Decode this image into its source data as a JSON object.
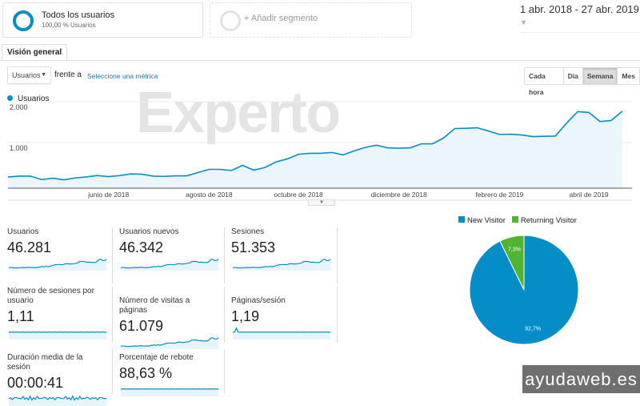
{
  "segments": {
    "primary": {
      "title": "Todos los usuarios",
      "subtitle": "100,00 % Usuarios"
    },
    "add": "+ Añadir segmento"
  },
  "date_range": "1 abr. 2018 - 27 abr. 2019",
  "tab": "Visión general",
  "controls": {
    "metric_select": "Usuarios",
    "versus": "frente a",
    "select_metric_link": "Seleccione una métrica",
    "granularity": [
      "Cada hora",
      "Día",
      "Semana",
      "Mes"
    ],
    "active": "Semana"
  },
  "colors": {
    "accent": "#058dc7",
    "fill": "#e6f4fb",
    "returning": "#50b432",
    "link": "#1a73b8"
  },
  "watermark": "Experto",
  "chart_data": {
    "type": "area",
    "legend": "Usuarios",
    "ylim": [
      0,
      2200
    ],
    "yticks": [
      {
        "v": 1000,
        "label": "1.000"
      },
      {
        "v": 2000,
        "label": "2.000"
      }
    ],
    "xticks": [
      {
        "i": 9,
        "label": "junio de 2018"
      },
      {
        "i": 18,
        "label": "agosto de 2018"
      },
      {
        "i": 26,
        "label": "octubre de 2018"
      },
      {
        "i": 35,
        "label": "diciembre de 2018"
      },
      {
        "i": 44,
        "label": "febrero de 2019"
      },
      {
        "i": 52,
        "label": "abril de 2019"
      }
    ],
    "values": [
      276,
      296,
      296,
      211,
      243,
      204,
      250,
      276,
      309,
      283,
      309,
      349,
      342,
      296,
      289,
      303,
      303,
      382,
      461,
      461,
      434,
      559,
      441,
      507,
      645,
      717,
      829,
      855,
      855,
      875,
      816,
      914,
      1000,
      1053,
      987,
      980,
      987,
      1086,
      1086,
      1230,
      1461,
      1467,
      1480,
      1401,
      1316,
      1322,
      1303,
      1263,
      1270,
      1276,
      1592,
      1875,
      1855,
      1632,
      1658,
      1888
    ]
  },
  "metrics": [
    {
      "label": "Usuarios",
      "value": "46.281",
      "spark": "trend"
    },
    {
      "label": "Usuarios nuevos",
      "value": "46.342",
      "spark": "trend"
    },
    {
      "label": "Sesiones",
      "value": "51.353",
      "spark": "trend"
    },
    {
      "label": "Número de sesiones por usuario",
      "value": "1,11",
      "spark": "flat"
    },
    {
      "label": "Número de visitas a páginas",
      "value": "61.079",
      "spark": "trend"
    },
    {
      "label": "Páginas/sesión",
      "value": "1,19",
      "spark": "spike"
    },
    {
      "label": "Duración media de la sesión",
      "value": "00:00:41",
      "spark": "noisy"
    },
    {
      "label": "Porcentaje de rebote",
      "value": "88,63 %",
      "spark": "flat"
    }
  ],
  "pie": {
    "legend": [
      {
        "name": "New Visitor",
        "color": "#058dc7"
      },
      {
        "name": "Returning Visitor",
        "color": "#50b432"
      }
    ],
    "slices": [
      {
        "name": "New Visitor",
        "value": 92.7,
        "label": "92,7%"
      },
      {
        "name": "Returning Visitor",
        "value": 7.3,
        "label": "7,3%"
      }
    ]
  },
  "brand": "ayudaweb.es"
}
